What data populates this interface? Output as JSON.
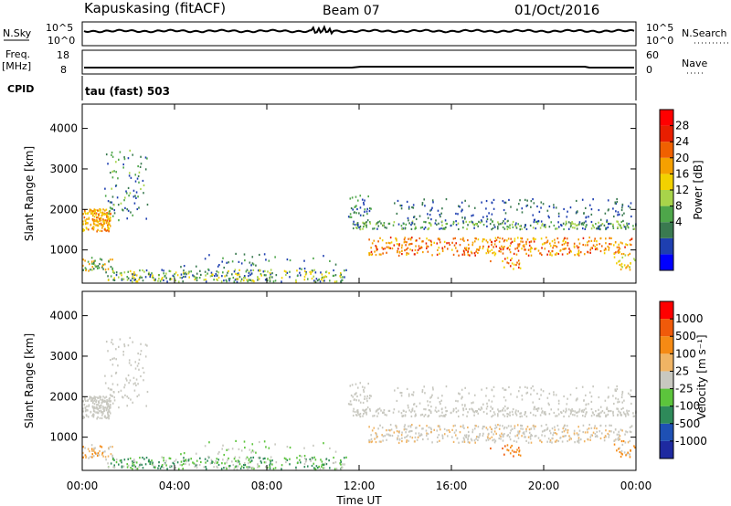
{
  "header": {
    "station": "Kapuskasing (fitACF)",
    "beam": "Beam 07",
    "date": "01/Oct/2016"
  },
  "strips": {
    "sky_label": "N.Sky",
    "sky_ticks": [
      "10^5",
      "10^0"
    ],
    "search_label": "N.Search",
    "search_ticks": [
      "10^5",
      "10^0"
    ],
    "freq_label_line1": "Freq.",
    "freq_label_line2": "[MHz]",
    "freq_ticks": [
      "18",
      "8"
    ],
    "nave_label": "Nave",
    "nave_ticks": [
      "60",
      "0"
    ],
    "cpid_label": "CPID",
    "mode_text": "tau (fast) 503"
  },
  "chart_data": [
    {
      "type": "heatmap",
      "panel": "power",
      "ylabel": "Slant Range [km]",
      "yticks": [
        "4000",
        "3000",
        "2000",
        "1000"
      ],
      "ylim": [
        180,
        4600
      ],
      "xlim_hours": [
        0,
        24
      ],
      "colorbar_label": "Power [dB]",
      "colorbar_ticks": [
        "28",
        "24",
        "20",
        "16",
        "12",
        "8",
        "4"
      ],
      "colorbar_colors": [
        "#0000ff",
        "#1e3fb0",
        "#3a7a50",
        "#4ea64a",
        "#a8d44a",
        "#f2d100",
        "#f5a000",
        "#f06000",
        "#e81e00",
        "#ff0000"
      ]
    },
    {
      "type": "heatmap",
      "panel": "velocity",
      "ylabel": "Slant Range [km]",
      "yticks": [
        "4000",
        "3000",
        "2000",
        "1000"
      ],
      "ylim": [
        180,
        4600
      ],
      "xlim_hours": [
        0,
        24
      ],
      "xlabel": "Time UT",
      "xticks": [
        "00:00",
        "04:00",
        "08:00",
        "12:00",
        "16:00",
        "20:00",
        "00:00"
      ],
      "colorbar_label": "Velocity [m s⁻¹]",
      "colorbar_ticks": [
        "1000",
        "500",
        "100",
        "25",
        "-25",
        "-100",
        "-500",
        "-1000"
      ],
      "colorbar_colors": [
        "#1e2aa0",
        "#1e50b4",
        "#2e8a5a",
        "#5cc43c",
        "#c8c8c0",
        "#f0b464",
        "#f58a14",
        "#f05a0a",
        "#ff0000"
      ]
    }
  ]
}
